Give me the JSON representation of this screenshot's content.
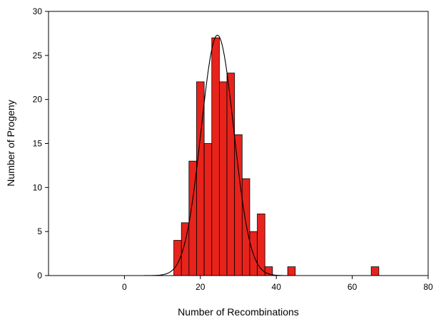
{
  "chart_data": {
    "type": "bar",
    "xlabel": "Number of Recombinations",
    "ylabel": "Number of Progeny",
    "xlim": [
      -20,
      80
    ],
    "ylim": [
      0,
      30
    ],
    "xticks": [
      0,
      20,
      40,
      60,
      80
    ],
    "yticks": [
      0,
      5,
      10,
      15,
      20,
      25,
      30
    ],
    "bin_width": 2,
    "bar_color": "#e8231c",
    "bars": [
      {
        "x_start": 13,
        "value": 4
      },
      {
        "x_start": 15,
        "value": 6
      },
      {
        "x_start": 17,
        "value": 13
      },
      {
        "x_start": 19,
        "value": 22
      },
      {
        "x_start": 21,
        "value": 15
      },
      {
        "x_start": 23,
        "value": 27
      },
      {
        "x_start": 25,
        "value": 22
      },
      {
        "x_start": 27,
        "value": 23
      },
      {
        "x_start": 29,
        "value": 16
      },
      {
        "x_start": 31,
        "value": 11
      },
      {
        "x_start": 33,
        "value": 5
      },
      {
        "x_start": 35,
        "value": 7
      },
      {
        "x_start": 37,
        "value": 1
      },
      {
        "x_start": 43,
        "value": 1
      },
      {
        "x_start": 65,
        "value": 1
      }
    ],
    "fit_curve": {
      "type": "normal",
      "peak": 27.3,
      "mean": 24.5,
      "sd": 4.3,
      "x_range": [
        0,
        70
      ]
    },
    "grid": false,
    "legend": "none"
  }
}
